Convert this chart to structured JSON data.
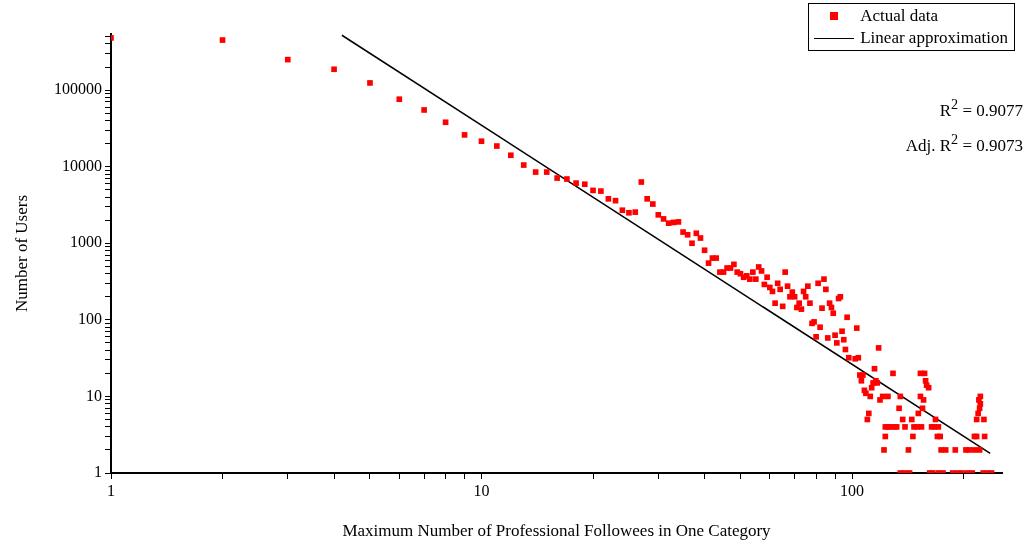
{
  "chart_data": {
    "type": "scatter",
    "xlabel": "Maximum Number of Professional Followees in One Category",
    "ylabel": "Number of Users",
    "log": "xy",
    "xlim": [
      1,
      254
    ],
    "ylim": [
      1,
      540000
    ],
    "xticks": [
      1,
      {
        "value": 2,
        "label": null
      },
      {
        "value": 3,
        "label": null
      },
      {
        "value": 4,
        "label": null
      },
      {
        "value": 5,
        "label": null
      },
      {
        "value": 6,
        "label": null
      },
      {
        "value": 7,
        "label": null
      },
      {
        "value": 8,
        "label": null
      },
      {
        "value": 9,
        "label": null
      },
      10,
      {
        "value": 20,
        "label": null
      },
      {
        "value": 30,
        "label": null
      },
      {
        "value": 40,
        "label": null
      },
      {
        "value": 50,
        "label": null
      },
      {
        "value": 60,
        "label": null
      },
      {
        "value": 70,
        "label": null
      },
      {
        "value": 80,
        "label": null
      },
      {
        "value": 90,
        "label": null
      },
      100,
      {
        "value": 200,
        "label": null
      }
    ],
    "yticks": [
      1,
      {
        "value": 2,
        "label": null
      },
      {
        "value": 3,
        "label": null
      },
      {
        "value": 4,
        "label": null
      },
      {
        "value": 5,
        "label": null
      },
      {
        "value": 6,
        "label": null
      },
      {
        "value": 7,
        "label": null
      },
      {
        "value": 8,
        "label": null
      },
      {
        "value": 9,
        "label": null
      },
      10,
      {
        "value": 20,
        "label": null
      },
      {
        "value": 30,
        "label": null
      },
      {
        "value": 40,
        "label": null
      },
      {
        "value": 50,
        "label": null
      },
      {
        "value": 60,
        "label": null
      },
      {
        "value": 70,
        "label": null
      },
      {
        "value": 80,
        "label": null
      },
      {
        "value": 90,
        "label": null
      },
      100,
      {
        "value": 200,
        "label": null
      },
      {
        "value": 300,
        "label": null
      },
      {
        "value": 400,
        "label": null
      },
      {
        "value": 500,
        "label": null
      },
      {
        "value": 600,
        "label": null
      },
      {
        "value": 700,
        "label": null
      },
      {
        "value": 800,
        "label": null
      },
      {
        "value": 900,
        "label": null
      },
      1000,
      {
        "value": 2000,
        "label": null
      },
      {
        "value": 3000,
        "label": null
      },
      {
        "value": 4000,
        "label": null
      },
      {
        "value": 5000,
        "label": null
      },
      {
        "value": 6000,
        "label": null
      },
      {
        "value": 7000,
        "label": null
      },
      {
        "value": 8000,
        "label": null
      },
      {
        "value": 9000,
        "label": null
      },
      10000,
      {
        "value": 20000,
        "label": null
      },
      {
        "value": 30000,
        "label": null
      },
      {
        "value": 40000,
        "label": null
      },
      {
        "value": 50000,
        "label": null
      },
      {
        "value": 60000,
        "label": null
      },
      {
        "value": 70000,
        "label": null
      },
      {
        "value": 80000,
        "label": null
      },
      {
        "value": 90000,
        "label": null
      },
      100000,
      {
        "value": 200000,
        "label": null
      },
      {
        "value": 300000,
        "label": null
      },
      {
        "value": 400000,
        "label": null
      },
      {
        "value": 500000,
        "label": null
      }
    ],
    "grid": false,
    "legend": "top right",
    "marker": "square",
    "annotations": [
      "R$^{2}$ = 0.9077",
      "Adj. R$^{2}$ = 0.9073"
    ],
    "series": [
      {
        "name": "Actual data",
        "color": "#ff0000",
        "x": [
          1,
          2,
          3,
          4,
          5,
          6,
          7,
          8,
          9,
          10,
          11,
          12,
          13,
          14,
          15,
          16,
          17,
          18,
          19,
          20,
          21,
          22,
          23,
          24,
          25,
          26,
          27,
          28,
          29,
          30,
          31,
          32,
          33,
          34,
          35,
          36,
          37,
          38,
          39,
          40,
          41,
          42,
          43,
          44,
          45,
          46,
          47,
          48,
          49,
          50,
          51,
          52,
          53,
          54,
          55,
          56,
          57,
          58,
          59,
          60,
          61,
          62,
          63,
          64,
          65,
          66,
          67,
          68,
          69,
          70,
          71,
          72,
          73,
          74,
          75,
          76,
          77,
          78,
          79,
          80,
          81,
          82,
          83,
          84,
          85,
          86,
          87,
          88,
          89,
          90,
          91,
          92,
          93,
          94,
          95,
          96,
          97,
          98,
          102,
          103,
          104,
          105,
          106,
          107,
          108,
          109,
          110,
          111,
          112,
          113,
          114,
          115,
          116,
          117,
          118,
          119,
          121,
          125,
          122,
          123,
          123,
          125,
          127,
          130,
          132,
          129,
          134,
          135,
          137,
          139,
          142,
          146,
          145,
          147,
          150,
          154,
          151,
          153,
          156,
          153,
          157,
          158,
          159,
          161,
          155,
          164,
          167,
          171,
          168,
          170,
          173,
          174,
          179,
          190,
          203,
          207,
          214,
          221,
          214,
          217,
          217,
          219,
          221,
          222,
          220,
          222,
          227,
          228,
          135,
          139,
          143,
          162,
          165,
          171,
          176,
          187,
          193,
          198,
          205,
          211,
          226,
          232,
          238
        ],
        "values": [
          480000,
          450000,
          250000,
          187000,
          124000,
          76000,
          55000,
          38000,
          26000,
          21500,
          18600,
          14100,
          10500,
          8500,
          8500,
          7100,
          6900,
          6100,
          5900,
          4900,
          4800,
          3800,
          3600,
          2700,
          2500,
          2550,
          6300,
          3800,
          3250,
          2350,
          2080,
          1830,
          1870,
          1900,
          1400,
          1290,
          1000,
          1350,
          1170,
          810,
          550,
          640,
          640,
          420,
          420,
          475,
          475,
          530,
          420,
          400,
          360,
          375,
          340,
          420,
          340,
          490,
          435,
          290,
          360,
          265,
          235,
          165,
          300,
          250,
          150,
          420,
          275,
          200,
          230,
          200,
          145,
          165,
          138,
          235,
          200,
          275,
          165,
          90,
          94,
          60,
          300,
          80,
          142,
          340,
          250,
          58,
          165,
          145,
          122,
          63,
          50,
          190,
          200,
          71,
          55,
          41,
          108,
          32,
          31,
          78,
          32,
          19,
          16,
          19,
          12,
          11,
          5,
          6,
          10,
          13,
          15,
          23,
          16,
          15,
          43,
          9,
          10,
          10,
          2,
          3,
          4,
          4,
          4,
          4,
          4,
          20,
          7,
          10,
          5,
          4,
          2,
          3,
          5,
          4,
          4,
          4,
          6,
          10,
          9,
          20,
          20,
          16,
          14,
          13,
          7,
          4,
          4,
          4,
          5,
          3,
          3,
          2,
          2,
          2,
          2,
          2,
          2,
          2,
          3,
          3,
          5,
          6,
          7,
          8,
          9,
          10,
          5,
          3,
          1,
          1,
          1,
          1,
          1,
          1,
          1,
          1,
          1,
          1,
          1,
          1,
          1,
          1,
          1
        ]
      },
      {
        "name": "Linear approximation",
        "type": "line",
        "color": "#000000",
        "marker": "none",
        "x": [
          4.2,
          236
        ],
        "values": [
          520000,
          1.8
        ]
      }
    ]
  }
}
